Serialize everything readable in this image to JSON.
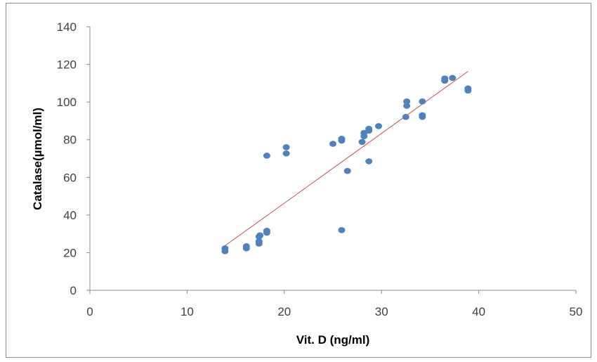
{
  "chart_data": {
    "type": "scatter",
    "xlabel": "Vit. D (ng/ml)",
    "ylabel": "Catalase(µmol/ml)",
    "xlim": [
      0,
      50
    ],
    "ylim": [
      0,
      140
    ],
    "x_ticks": [
      0,
      10,
      20,
      30,
      40,
      50
    ],
    "y_ticks": [
      0,
      20,
      40,
      60,
      80,
      100,
      120,
      140
    ],
    "x_tick_labels": [
      "0",
      "10",
      "20",
      "30",
      "40",
      "50"
    ],
    "y_tick_labels": [
      "0",
      "20",
      "40",
      "60",
      "80",
      "100",
      "120",
      "140"
    ],
    "grid": false,
    "legend": "none",
    "series": [
      {
        "marker_color": "#4f81bd",
        "points": [
          [
            13.9,
            20.8
          ],
          [
            13.9,
            22.3
          ],
          [
            16.1,
            22.3
          ],
          [
            16.1,
            23.4
          ],
          [
            17.4,
            24.8
          ],
          [
            17.4,
            26.0
          ],
          [
            17.4,
            28.5
          ],
          [
            17.5,
            29.2
          ],
          [
            18.2,
            30.6
          ],
          [
            18.2,
            31.6
          ],
          [
            18.2,
            71.5
          ],
          [
            20.2,
            72.7
          ],
          [
            20.2,
            76.0
          ],
          [
            25.0,
            77.8
          ],
          [
            25.9,
            79.5
          ],
          [
            25.9,
            80.5
          ],
          [
            25.9,
            32.0
          ],
          [
            26.5,
            63.4
          ],
          [
            28.0,
            78.8
          ],
          [
            28.2,
            81.8
          ],
          [
            28.2,
            83.6
          ],
          [
            28.7,
            84.8
          ],
          [
            28.7,
            85.8
          ],
          [
            28.7,
            68.5
          ],
          [
            29.7,
            87.2
          ],
          [
            32.5,
            92.1
          ],
          [
            32.6,
            98.0
          ],
          [
            32.6,
            100.3
          ],
          [
            34.2,
            92.1
          ],
          [
            34.2,
            93.0
          ],
          [
            34.2,
            100.3
          ],
          [
            36.5,
            111.3
          ],
          [
            36.5,
            112.5
          ],
          [
            37.3,
            112.8
          ],
          [
            38.9,
            106.1
          ],
          [
            38.9,
            107.2
          ]
        ]
      }
    ],
    "trendline": {
      "type": "linear",
      "color": "#c0504d",
      "x_range": [
        13.9,
        38.9
      ],
      "y_range": [
        23.7,
        116.3
      ]
    }
  }
}
